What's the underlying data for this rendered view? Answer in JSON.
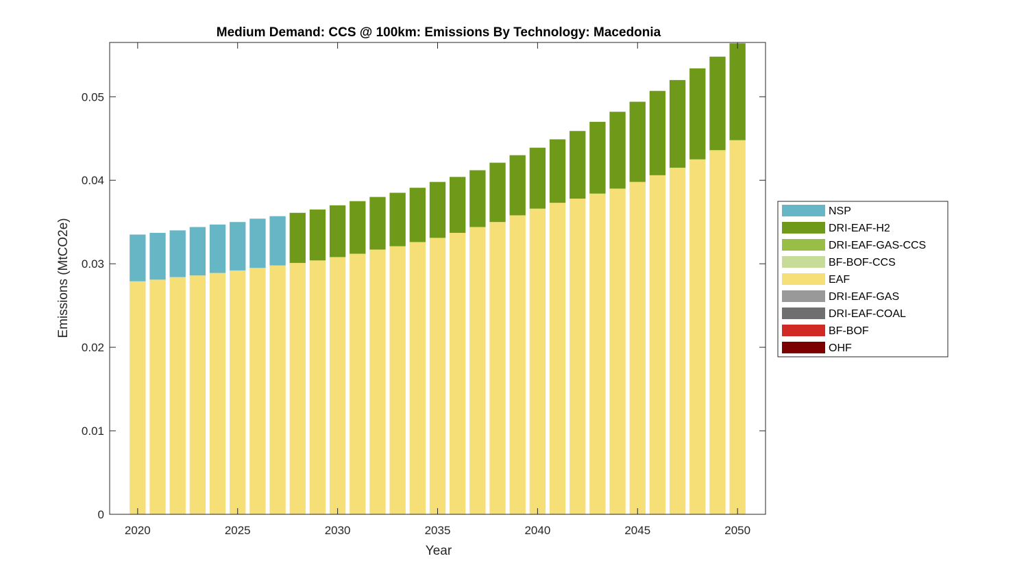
{
  "chart_data": {
    "type": "bar",
    "stacked": true,
    "title": "Medium Demand: CCS @ 100km: Emissions By Technology: Macedonia",
    "xlabel": "Year",
    "ylabel": "Emissions (MtCO2e)",
    "ylim": [
      0,
      0.0565
    ],
    "xlim": [
      2018.6,
      2051.4
    ],
    "yticks": [
      0,
      0.01,
      0.02,
      0.03,
      0.04,
      0.05
    ],
    "ytick_labels": [
      "0",
      "0.01",
      "0.02",
      "0.03",
      "0.04",
      "0.05"
    ],
    "xticks": [
      2020,
      2025,
      2030,
      2035,
      2040,
      2045,
      2050
    ],
    "xtick_labels": [
      "2020",
      "2025",
      "2030",
      "2035",
      "2040",
      "2045",
      "2050"
    ],
    "grid": false,
    "legend_position": "right",
    "categories": [
      2020,
      2021,
      2022,
      2023,
      2024,
      2025,
      2026,
      2027,
      2028,
      2029,
      2030,
      2031,
      2032,
      2033,
      2034,
      2035,
      2036,
      2037,
      2038,
      2039,
      2040,
      2041,
      2042,
      2043,
      2044,
      2045,
      2046,
      2047,
      2048,
      2049,
      2050
    ],
    "series": [
      {
        "name": "OHF",
        "color": "#7d0000",
        "values": [
          0,
          0,
          0,
          0,
          0,
          0,
          0,
          0,
          0,
          0,
          0,
          0,
          0,
          0,
          0,
          0,
          0,
          0,
          0,
          0,
          0,
          0,
          0,
          0,
          0,
          0,
          0,
          0,
          0,
          0,
          0
        ]
      },
      {
        "name": "BF-BOF",
        "color": "#d12a26",
        "values": [
          0,
          0,
          0,
          0,
          0,
          0,
          0,
          0,
          0,
          0,
          0,
          0,
          0,
          0,
          0,
          0,
          0,
          0,
          0,
          0,
          0,
          0,
          0,
          0,
          0,
          0,
          0,
          0,
          0,
          0,
          0
        ]
      },
      {
        "name": "DRI-EAF-COAL",
        "color": "#6f6f6f",
        "values": [
          0,
          0,
          0,
          0,
          0,
          0,
          0,
          0,
          0,
          0,
          0,
          0,
          0,
          0,
          0,
          0,
          0,
          0,
          0,
          0,
          0,
          0,
          0,
          0,
          0,
          0,
          0,
          0,
          0,
          0,
          0
        ]
      },
      {
        "name": "DRI-EAF-GAS",
        "color": "#999999",
        "values": [
          0,
          0,
          0,
          0,
          0,
          0,
          0,
          0,
          0,
          0,
          0,
          0,
          0,
          0,
          0,
          0,
          0,
          0,
          0,
          0,
          0,
          0,
          0,
          0,
          0,
          0,
          0,
          0,
          0,
          0,
          0
        ]
      },
      {
        "name": "EAF",
        "color": "#f7df78",
        "values": [
          0.0279,
          0.0281,
          0.0284,
          0.0286,
          0.0289,
          0.0292,
          0.0295,
          0.0298,
          0.0301,
          0.0304,
          0.0308,
          0.0312,
          0.0317,
          0.0321,
          0.0326,
          0.0331,
          0.0337,
          0.0344,
          0.035,
          0.0358,
          0.0366,
          0.0373,
          0.0378,
          0.0384,
          0.039,
          0.0398,
          0.0406,
          0.0415,
          0.0425,
          0.0436,
          0.0448
        ]
      },
      {
        "name": "BF-BOF-CCS",
        "color": "#c8dc9a",
        "values": [
          0,
          0,
          0,
          0,
          0,
          0,
          0,
          0,
          0,
          0,
          0,
          0,
          0,
          0,
          0,
          0,
          0,
          0,
          0,
          0,
          0,
          0,
          0,
          0,
          0,
          0,
          0,
          0,
          0,
          0,
          0
        ]
      },
      {
        "name": "DRI-EAF-GAS-CCS",
        "color": "#98be45",
        "values": [
          0,
          0,
          0,
          0,
          0,
          0,
          0,
          0,
          0,
          0,
          0,
          0,
          0,
          0,
          0,
          0,
          0,
          0,
          0,
          0,
          0,
          0,
          0,
          0,
          0,
          0,
          0,
          0,
          0,
          0,
          0
        ]
      },
      {
        "name": "DRI-EAF-H2",
        "color": "#6f9a19",
        "values": [
          0,
          0,
          0,
          0,
          0,
          0,
          0,
          0,
          0.006,
          0.0061,
          0.0062,
          0.0063,
          0.0063,
          0.0064,
          0.0065,
          0.0067,
          0.0067,
          0.0068,
          0.0071,
          0.0072,
          0.0073,
          0.0076,
          0.0081,
          0.0086,
          0.0092,
          0.0096,
          0.0101,
          0.0105,
          0.0109,
          0.0112,
          0.0116
        ]
      },
      {
        "name": "NSP",
        "color": "#67b6c6",
        "values": [
          0.0056,
          0.0056,
          0.0056,
          0.0058,
          0.0058,
          0.0058,
          0.0059,
          0.0059,
          0,
          0,
          0,
          0,
          0,
          0,
          0,
          0,
          0,
          0,
          0,
          0,
          0,
          0,
          0,
          0,
          0,
          0,
          0,
          0,
          0,
          0,
          0
        ]
      }
    ],
    "legend_order": [
      "NSP",
      "DRI-EAF-H2",
      "DRI-EAF-GAS-CCS",
      "BF-BOF-CCS",
      "EAF",
      "DRI-EAF-GAS",
      "DRI-EAF-COAL",
      "BF-BOF",
      "OHF"
    ]
  }
}
